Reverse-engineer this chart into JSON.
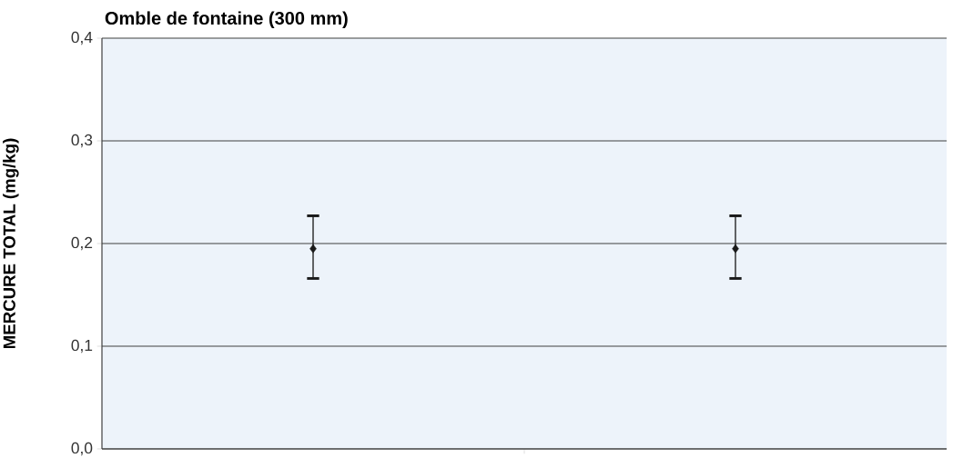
{
  "chart_data": {
    "type": "scatter",
    "title": "Omble de fontaine (300 mm)",
    "ylabel": "MERCURE TOTAL (mg/kg)",
    "categories": [
      null,
      null
    ],
    "series": [
      {
        "color": "#1a1a1a",
        "values": [
          0.195,
          0.195
        ],
        "errors": [
          [
            0.166,
            0.227
          ],
          [
            0.166,
            0.227
          ]
        ]
      }
    ],
    "ylim": [
      0,
      0.4
    ],
    "yticks": [
      {
        "value": 0,
        "label": "0,0"
      },
      {
        "value": 0.1,
        "label": "0,1"
      },
      {
        "value": 0.2,
        "label": "0,2"
      },
      {
        "value": 0.3,
        "label": "0,3"
      },
      {
        "value": 0.4,
        "label": "0,4"
      }
    ],
    "grid": "y",
    "marker": "diamond"
  }
}
